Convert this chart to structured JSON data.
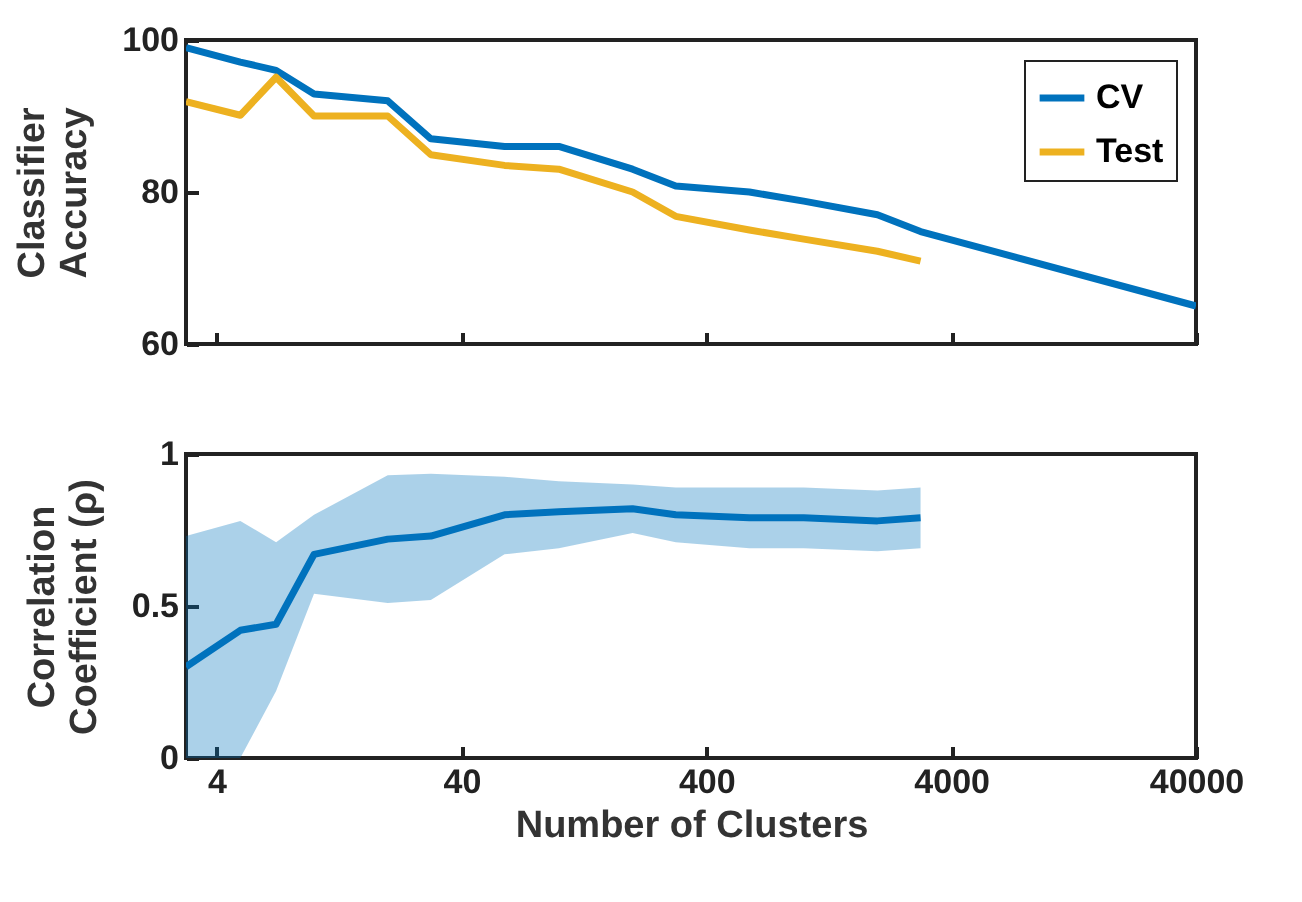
{
  "chart_data": [
    {
      "type": "line",
      "ylabel": "Classifier Accuracy",
      "x": [
        3,
        5,
        7,
        10,
        20,
        30,
        60,
        100,
        200,
        300,
        600,
        1000,
        2000,
        3000,
        40000
      ],
      "series": [
        {
          "name": "CV",
          "color": "#0072bd",
          "values": [
            99,
            97.1,
            96,
            92.9,
            92,
            87,
            86,
            86,
            83,
            80.8,
            80,
            78.8,
            77,
            74.8,
            65
          ]
        },
        {
          "name": "Test",
          "color": "#edb120",
          "values": [
            91.9,
            90.1,
            95.1,
            90,
            90,
            84.9,
            83.5,
            83,
            80,
            76.8,
            75,
            73.8,
            72.2,
            70.9,
            null
          ]
        }
      ],
      "log": "x",
      "xlim": [
        3,
        40000
      ],
      "xticks": [
        4,
        40,
        400,
        4000,
        40000
      ],
      "ylim": [
        60,
        100
      ],
      "yticks": [
        60,
        80,
        100
      ],
      "tick_labels": "y",
      "legend": "top right",
      "grid": false
    },
    {
      "type": "line",
      "xlabel": "Number of Clusters",
      "ylabel": "Correlation Coefficient (ρ)",
      "x": [
        3,
        5,
        7,
        10,
        20,
        30,
        60,
        100,
        200,
        300,
        600,
        1000,
        2000,
        3000
      ],
      "series": [
        {
          "color": "#0072bd",
          "values": [
            0.3,
            0.42,
            0.44,
            0.67,
            0.72,
            0.73,
            0.8,
            0.81,
            0.82,
            0.8,
            0.79,
            0.79,
            0.78,
            0.79
          ],
          "lower": [
            0,
            0,
            0.22,
            0.54,
            0.51,
            0.52,
            0.67,
            0.69,
            0.74,
            0.71,
            0.69,
            0.69,
            0.68,
            0.69
          ],
          "upper": [
            0.73,
            0.78,
            0.71,
            0.8,
            0.93,
            0.935,
            0.925,
            0.91,
            0.9,
            0.89,
            0.89,
            0.89,
            0.88,
            0.89
          ]
        }
      ],
      "log": "x",
      "xlim": [
        3,
        40000
      ],
      "xticks": [
        4,
        40,
        400,
        4000,
        40000
      ],
      "ylim": [
        0,
        1
      ],
      "yticks": [
        0,
        0.5,
        1
      ],
      "legend": false,
      "grid": false
    }
  ]
}
